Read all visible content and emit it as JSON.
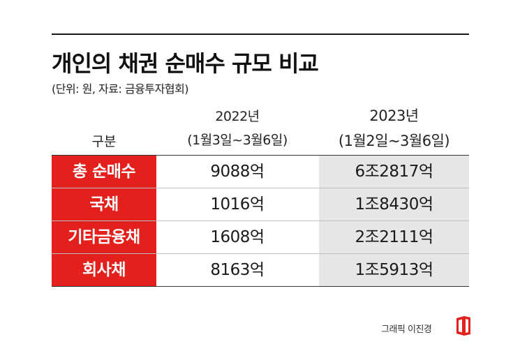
{
  "title": "개인의 채권 순매수 규모 비교",
  "subtitle": "(단위: 원, 자료: 금융투자협회)",
  "header": {
    "col_label": "구분",
    "col_2022_year": "2022년",
    "col_2022_period": "(1월3일~3월6일)",
    "col_2023_year": "2023년",
    "col_2023_period": "(1월2일~3월6일)"
  },
  "rows": [
    {
      "label": "총 순매수",
      "v2022": "9088억",
      "v2023": "6조2817억"
    },
    {
      "label": "국채",
      "v2022": "1016억",
      "v2023": "1조8430억"
    },
    {
      "label": "기타금융채",
      "v2022": "1608억",
      "v2023": "2조2111억"
    },
    {
      "label": "회사채",
      "v2022": "8163억",
      "v2023": "1조5913억"
    }
  ],
  "credit": "그래픽 이진경",
  "logo_icon": "publisher-logo-icon",
  "colors": {
    "accent_red": "#e3201c",
    "highlight_gray": "#e6e6e6",
    "text": "#1a1a1a"
  }
}
